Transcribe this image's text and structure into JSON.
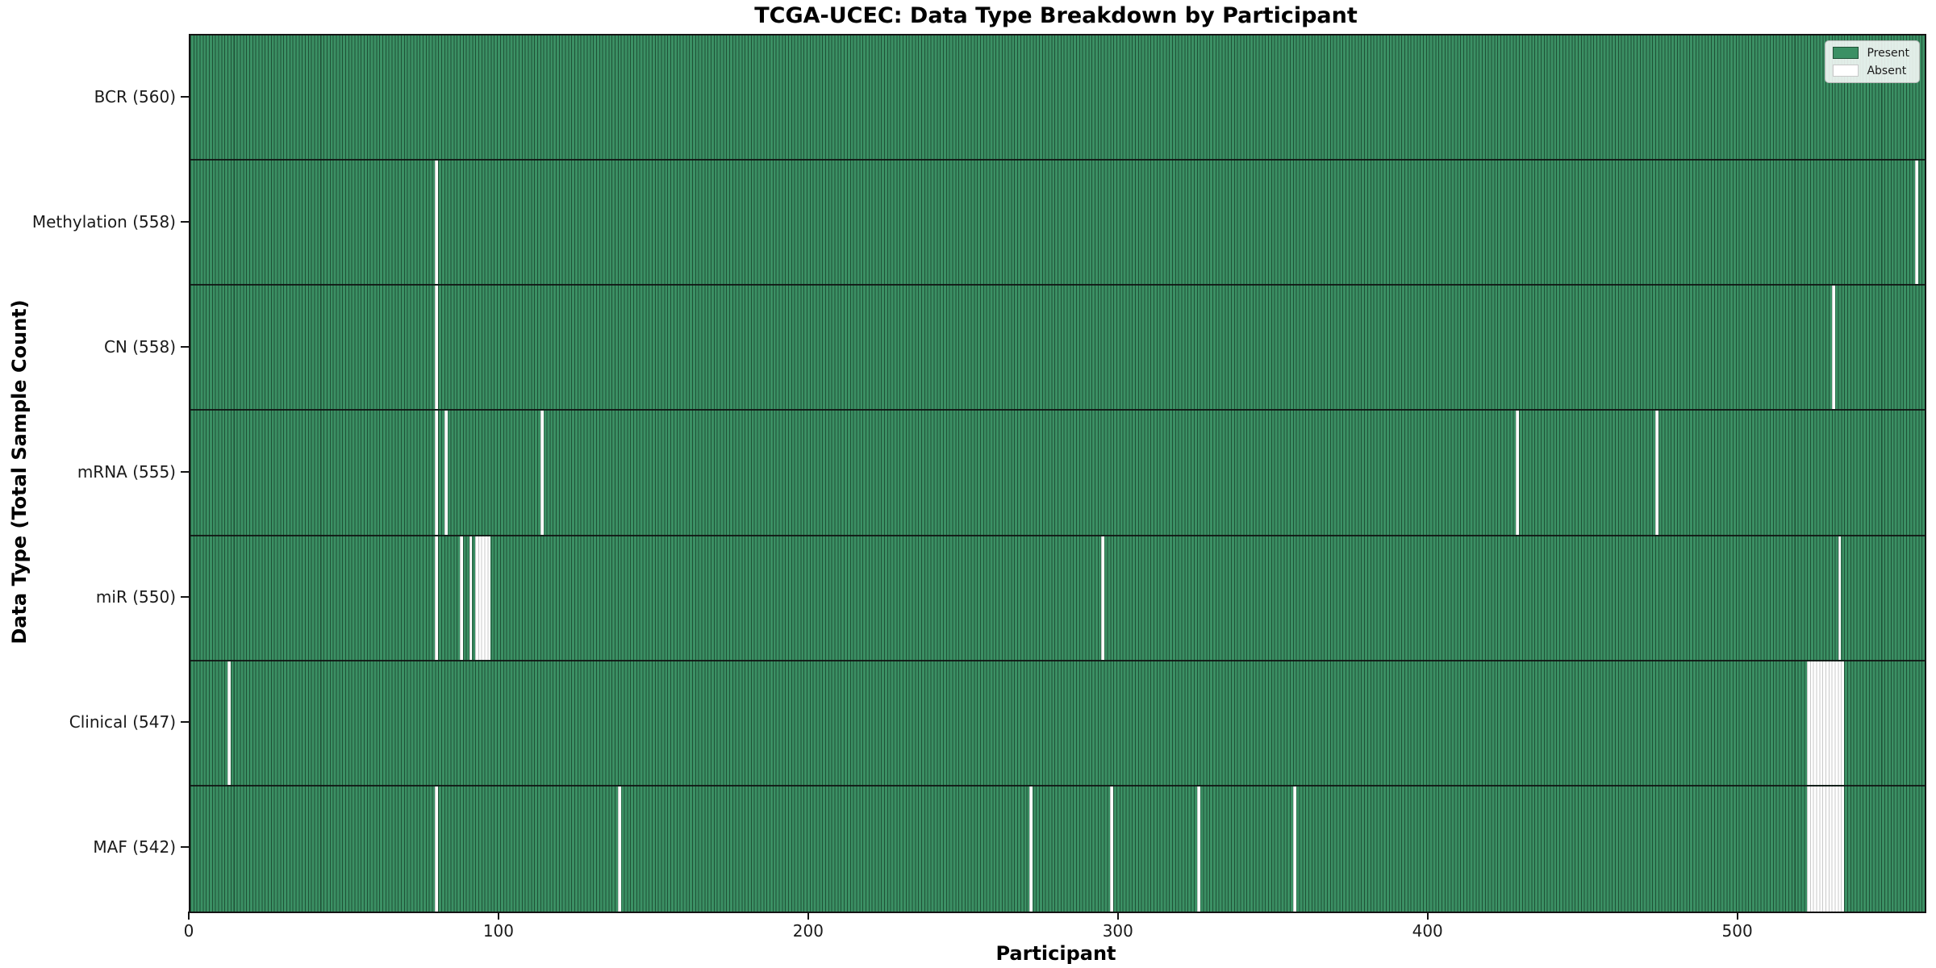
{
  "figure": {
    "title": "TCGA-UCEC: Data Type Breakdown by Participant",
    "xlabel": "Participant",
    "ylabel": "Data Type (Total Sample Count)"
  },
  "legend": {
    "items": [
      {
        "label": "Present",
        "color": "#3b9064"
      },
      {
        "label": "Absent",
        "color": "#ffffff"
      }
    ]
  },
  "chart_data": {
    "type": "heatmap",
    "title": "TCGA-UCEC: Data Type Breakdown by Participant",
    "xlabel": "Participant",
    "ylabel": "Data Type (Total Sample Count)",
    "legend": [
      "Present",
      "Absent"
    ],
    "legend_position": "upper right",
    "grid": false,
    "n_participants": 560,
    "x_range": [
      0,
      560
    ],
    "x_ticks": [
      0,
      100,
      200,
      300,
      400,
      500
    ],
    "x_tick_labels": [
      "0",
      "100",
      "200",
      "300",
      "400",
      "500"
    ],
    "colors": {
      "present_fill": "#3b9064",
      "present_edge": "#1f5136",
      "absent_fill": "#ffffff",
      "absent_edge": "#c8c8c8",
      "row_divider": "#141414"
    },
    "rows": [
      {
        "name": "BCR",
        "label": "BCR (560)",
        "total": 560,
        "absent_participants": []
      },
      {
        "name": "Methylation",
        "label": "Methylation (558)",
        "total": 558,
        "absent_participants": [
          79,
          557
        ]
      },
      {
        "name": "CN",
        "label": "CN (558)",
        "total": 558,
        "absent_participants": [
          79,
          530
        ]
      },
      {
        "name": "mRNA",
        "label": "mRNA (555)",
        "total": 555,
        "absent_participants": [
          79,
          82,
          113,
          428,
          473
        ]
      },
      {
        "name": "miR",
        "label": "miR (550)",
        "total": 550,
        "absent_participants": [
          79,
          87,
          90,
          92,
          93,
          94,
          95,
          96,
          294,
          532
        ]
      },
      {
        "name": "Clinical",
        "label": "Clinical (547)",
        "total": 547,
        "absent_participants": [
          12,
          522,
          523,
          524,
          525,
          526,
          527,
          528,
          529,
          530,
          531,
          532,
          533
        ]
      },
      {
        "name": "MAF",
        "label": "MAF (542)",
        "total": 542,
        "absent_participants": [
          79,
          138,
          271,
          297,
          325,
          356,
          522,
          523,
          524,
          525,
          526,
          527,
          528,
          529,
          530,
          531,
          532,
          533
        ]
      }
    ]
  }
}
